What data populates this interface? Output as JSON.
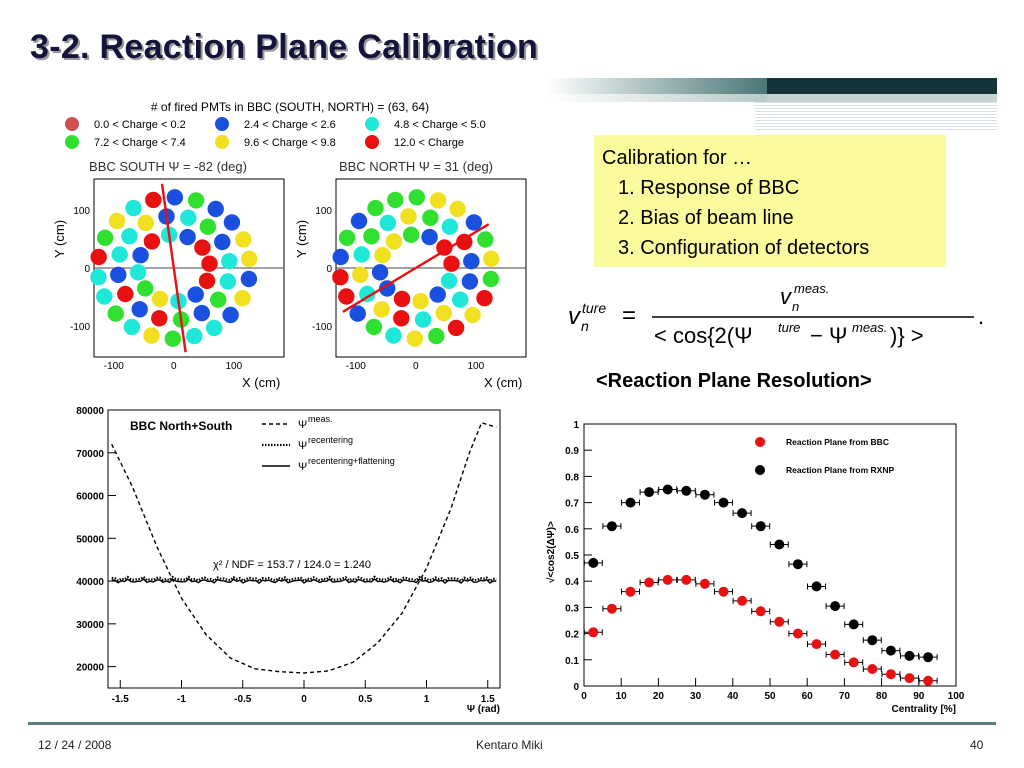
{
  "slide": {
    "title": "3-2. Reaction Plane Calibration",
    "footer": {
      "date": "12 / 24 / 2008",
      "author": "Kentaro Miki",
      "page": "40"
    }
  },
  "callout": {
    "heading": "Calibration for …",
    "items": [
      "1. Response of BBC",
      "2. Bias of beam line",
      "3. Configuration of detectors"
    ]
  },
  "resolution_heading": "<Reaction Plane Resolution>",
  "bbc_panel": {
    "title": "# of fired PMTs in BBC (SOUTH, NORTH) = (63, 64)",
    "legend": [
      {
        "label": "0.0 < Charge < 0.2",
        "color": "#d05050"
      },
      {
        "label": "2.4 < Charge < 2.6",
        "color": "#1a50e0"
      },
      {
        "label": "4.8 < Charge < 5.0",
        "color": "#20e8d8"
      },
      {
        "label": "7.2 < Charge < 7.4",
        "color": "#30e030"
      },
      {
        "label": "9.6 < Charge < 9.8",
        "color": "#f0e020"
      },
      {
        "label": "12.0 < Charge",
        "color": "#e81010"
      }
    ],
    "south_title": "BBC SOUTH Ψ = -82 (deg)",
    "north_title": "BBC NORTH Ψ =  31 (deg)",
    "ylabel": "Y (cm)",
    "xlabel": "X (cm)",
    "yticks": [
      "100",
      "0",
      "-100"
    ],
    "xticks": [
      "-100",
      "0",
      "100"
    ]
  },
  "chart_data": [
    {
      "type": "line",
      "title": "BBC North+South",
      "xlabel": "Ψ (rad)",
      "xlim": [
        -1.6,
        1.6
      ],
      "ylim": [
        15000,
        80000
      ],
      "xticks": [
        "-1.5",
        "-1",
        "-0.5",
        "0",
        "0.5",
        "1",
        "1.5"
      ],
      "yticks": [
        "80000",
        "70000",
        "60000",
        "50000",
        "40000",
        "30000",
        "20000"
      ],
      "legend": [
        "Ψmeas.",
        "Ψrecentering",
        "Ψrecentering+flattening"
      ],
      "annotation": "χ² / NDF = 153.7 / 124.0 = 1.240",
      "series": [
        {
          "name": "Ψmeas.",
          "style": "dashed",
          "x": [
            -1.57,
            -1.4,
            -1.2,
            -1.0,
            -0.8,
            -0.6,
            -0.4,
            -0.2,
            0.0,
            0.2,
            0.4,
            0.6,
            0.8,
            1.0,
            1.2,
            1.35,
            1.45,
            1.57
          ],
          "values": [
            72000,
            62000,
            48000,
            36000,
            27500,
            22000,
            19500,
            18800,
            18500,
            19000,
            21000,
            25500,
            32500,
            43000,
            57000,
            70000,
            77000,
            76000
          ]
        },
        {
          "name": "Ψrecentering",
          "style": "dotted",
          "x": [
            -1.57,
            1.57
          ],
          "values": [
            40500,
            40500
          ]
        },
        {
          "name": "Ψrecentering+flattening",
          "style": "solid",
          "x": [
            -1.57,
            1.57
          ],
          "values": [
            40000,
            40000
          ]
        }
      ]
    },
    {
      "type": "scatter",
      "xlabel": "Centrality [%]",
      "ylabel": "√<cos2(ΔΨ)>",
      "xlim": [
        0,
        100
      ],
      "ylim": [
        0,
        1
      ],
      "xticks": [
        "0",
        "10",
        "20",
        "30",
        "40",
        "50",
        "60",
        "70",
        "80",
        "90",
        "100"
      ],
      "yticks": [
        "1",
        "0.9",
        "0.8",
        "0.7",
        "0.6",
        "0.5",
        "0.4",
        "0.3",
        "0.2",
        "0.1",
        "0"
      ],
      "series": [
        {
          "name": "Reaction Plane from BBC",
          "color": "#e81010",
          "x": [
            2.5,
            7.5,
            12.5,
            17.5,
            22.5,
            27.5,
            32.5,
            37.5,
            42.5,
            47.5,
            52.5,
            57.5,
            62.5,
            67.5,
            72.5,
            77.5,
            82.5,
            87.5,
            92.5
          ],
          "values": [
            0.205,
            0.295,
            0.36,
            0.395,
            0.405,
            0.405,
            0.39,
            0.36,
            0.325,
            0.285,
            0.245,
            0.2,
            0.16,
            0.12,
            0.09,
            0.065,
            0.045,
            0.03,
            0.02
          ]
        },
        {
          "name": "Reaction Plane from RXNP",
          "color": "#000000",
          "x": [
            2.5,
            7.5,
            12.5,
            17.5,
            22.5,
            27.5,
            32.5,
            37.5,
            42.5,
            47.5,
            52.5,
            57.5,
            62.5,
            67.5,
            72.5,
            77.5,
            82.5,
            87.5,
            92.5
          ],
          "values": [
            0.47,
            0.61,
            0.7,
            0.74,
            0.75,
            0.745,
            0.73,
            0.7,
            0.66,
            0.61,
            0.54,
            0.465,
            0.38,
            0.305,
            0.235,
            0.175,
            0.135,
            0.115,
            0.11
          ]
        }
      ]
    }
  ]
}
